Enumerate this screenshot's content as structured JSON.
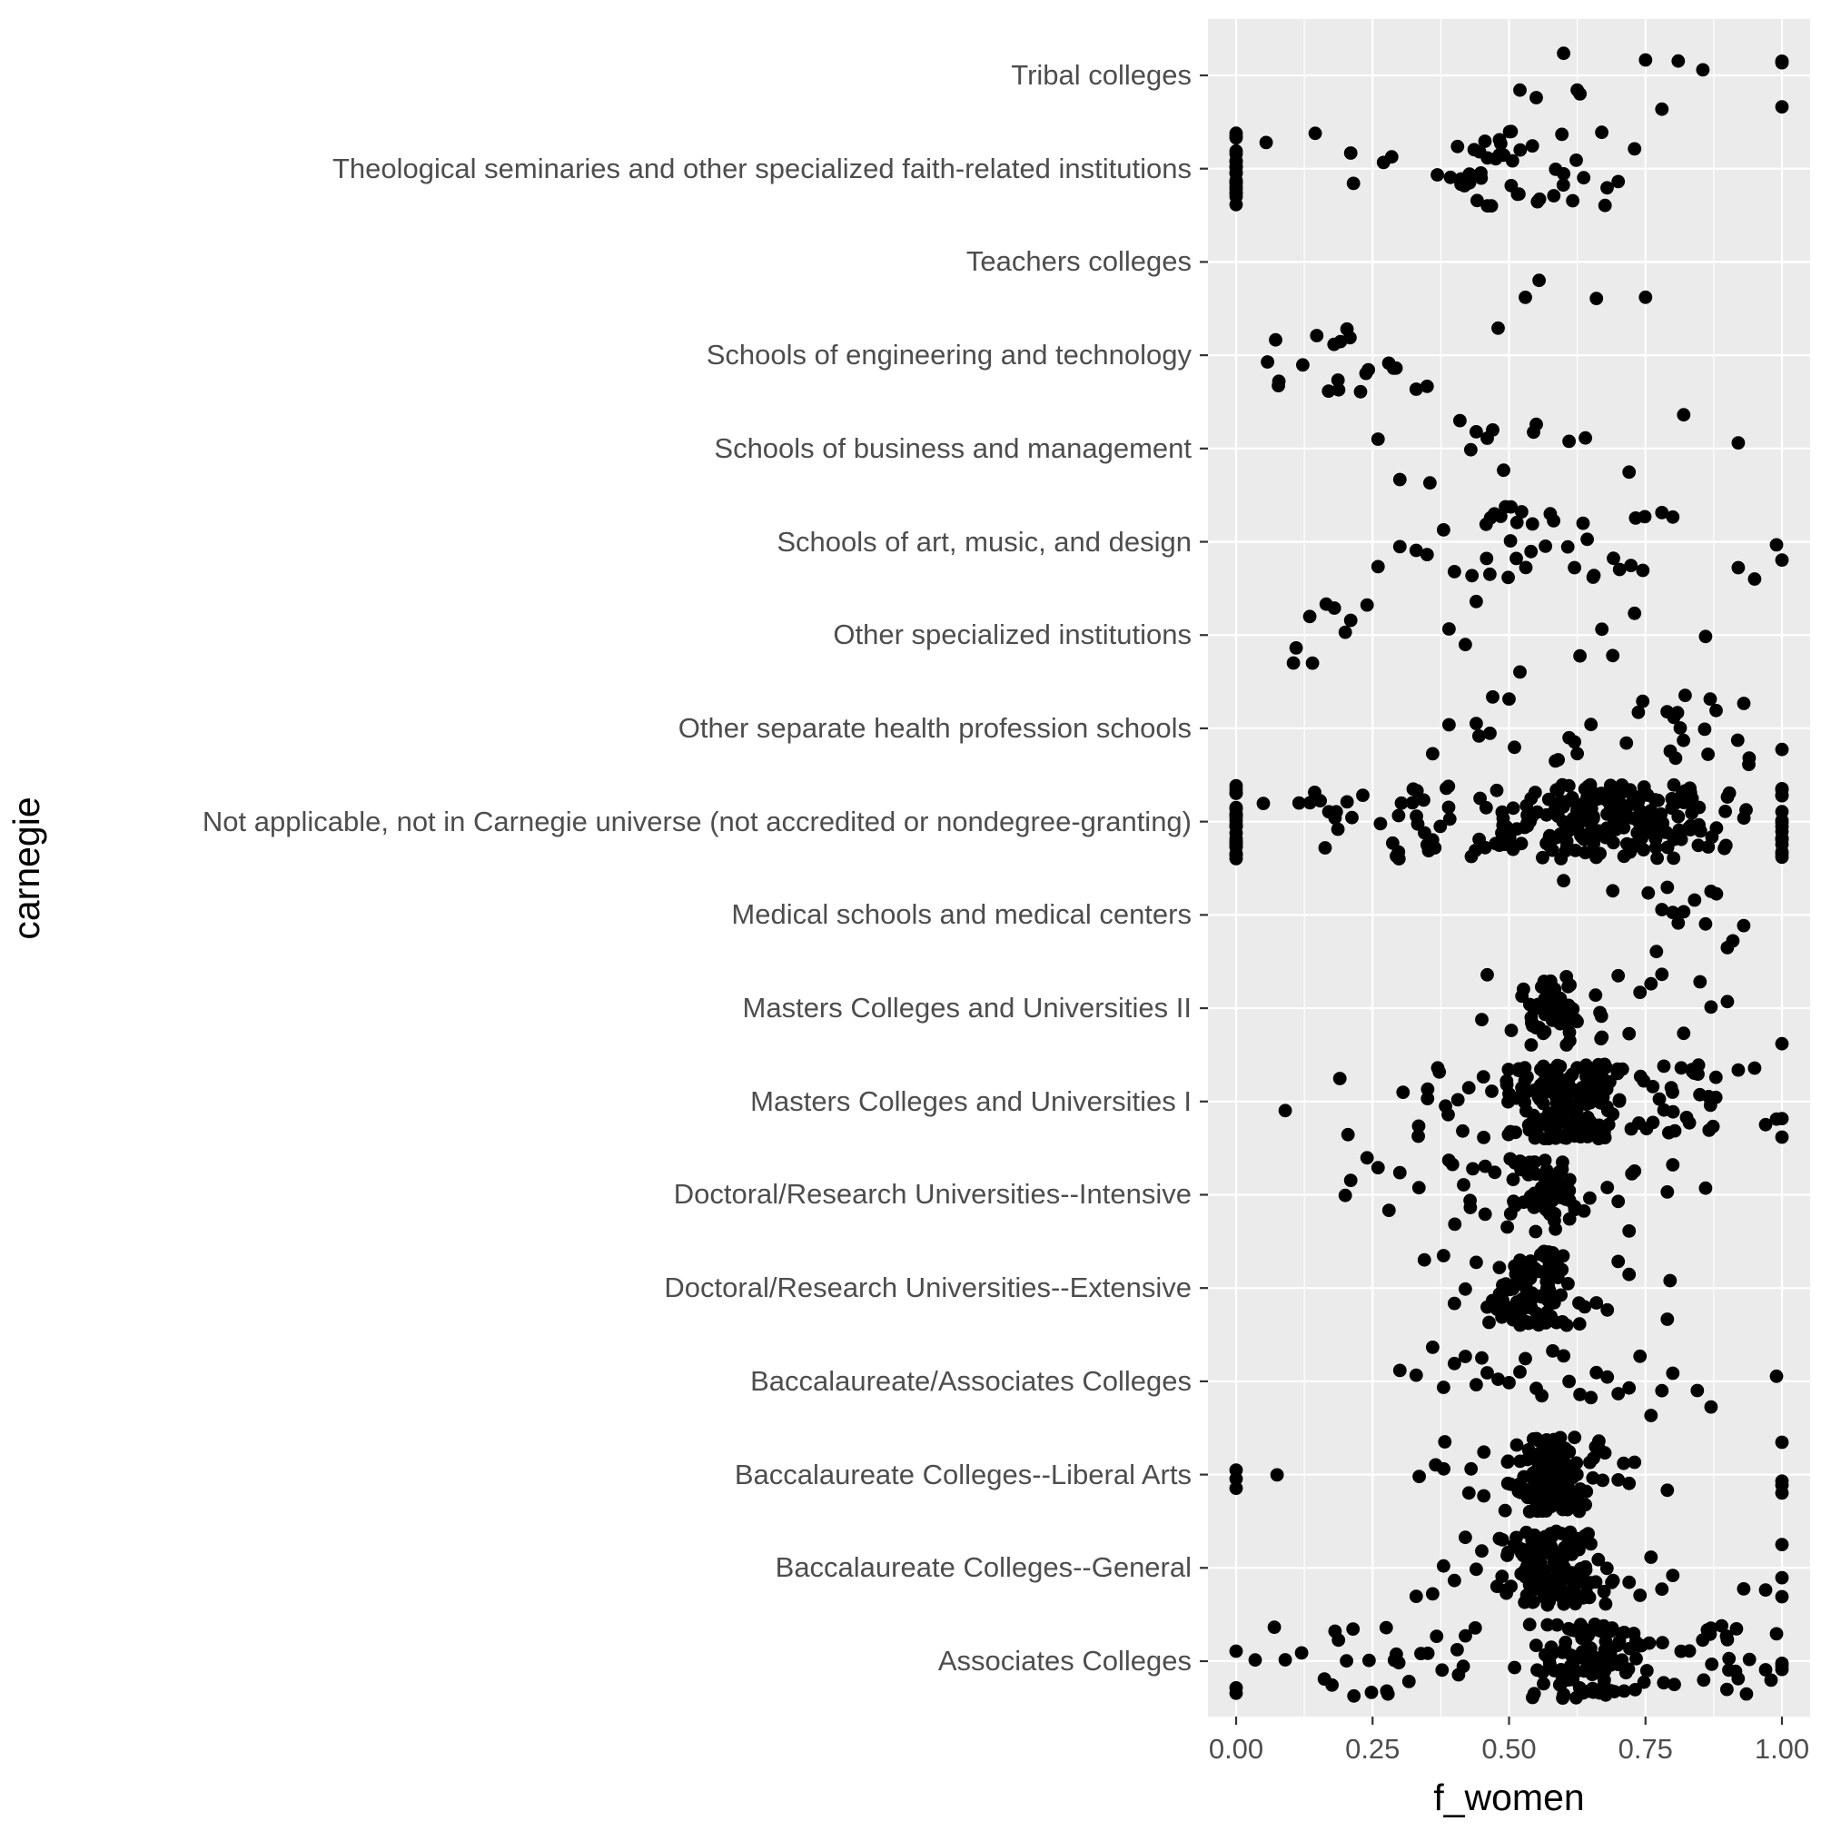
{
  "style": {
    "panel_bg": "#EBEBEB",
    "grid_color": "#FFFFFF",
    "point_color": "#000000",
    "axis_text_color": "#4D4D4D",
    "axis_title_color": "#000000",
    "tick_color": "#333333"
  },
  "chart_data": {
    "type": "scatter",
    "subtype": "jitter-strip-plot",
    "title": "",
    "xlabel": "f_women",
    "ylabel": "carnegie",
    "xlim": [
      -0.05,
      1.05
    ],
    "grid": "on",
    "legend": "none",
    "x_ticks": {
      "labels": [
        "0.00",
        "0.25",
        "0.50",
        "0.75",
        "1.00"
      ],
      "values": [
        0,
        0.25,
        0.5,
        0.75,
        1.0
      ]
    },
    "x_minor_gridlines": [
      0.125,
      0.375,
      0.625,
      0.875
    ],
    "categories_top_to_bottom": [
      "Tribal colleges",
      "Theological seminaries and other specialized faith-related institutions",
      "Teachers colleges",
      "Schools of engineering and technology",
      "Schools of business and management",
      "Schools of art, music, and design",
      "Other specialized institutions",
      "Other separate health profession schools",
      "Not applicable, not in Carnegie universe (not accredited or nondegree-granting)",
      "Medical schools and medical centers",
      "Masters Colleges and Universities II",
      "Masters Colleges and Universities I",
      "Doctoral/Research Universities--Intensive",
      "Doctoral/Research Universities--Extensive",
      "Baccalaureate/Associates Colleges",
      "Baccalaureate Colleges--Liberal Arts",
      "Baccalaureate Colleges--General",
      "Associates Colleges"
    ],
    "series": [
      {
        "label": "Tribal colleges",
        "zeros": 0,
        "ones": 3,
        "values": [
          0.52,
          0.55,
          0.6,
          0.625,
          0.63,
          0.75,
          0.78,
          0.81,
          0.855
        ],
        "clusters": []
      },
      {
        "label": "Theological seminaries and other specialized faith-related institutions",
        "zeros": 20,
        "ones": 0,
        "values": [
          0.055,
          0.145,
          0.21,
          0.215,
          0.27,
          0.285,
          0.7,
          0.73
        ],
        "clusters": [
          {
            "n": 30,
            "lo": 0.34,
            "hi": 0.56,
            "d": "tri"
          },
          {
            "n": 14,
            "lo": 0.5,
            "hi": 0.68,
            "d": "uni"
          }
        ]
      },
      {
        "label": "Teachers colleges",
        "zeros": 0,
        "ones": 0,
        "values": [
          0.53,
          0.555,
          0.66,
          0.75
        ],
        "clusters": []
      },
      {
        "label": "Schools of engineering and technology",
        "zeros": 0,
        "ones": 0,
        "values": [
          0.33,
          0.35,
          0.48
        ],
        "clusters": [
          {
            "n": 19,
            "lo": 0.03,
            "hi": 0.3,
            "d": "uni"
          }
        ]
      },
      {
        "label": "Schools of business and management",
        "zeros": 0,
        "ones": 0,
        "values": [
          0.26,
          0.3,
          0.355,
          0.41,
          0.43,
          0.44,
          0.46,
          0.47,
          0.49,
          0.545,
          0.55,
          0.61,
          0.64,
          0.72,
          0.82,
          0.92
        ],
        "clusters": []
      },
      {
        "label": "Schools of art, music, and design",
        "zeros": 0,
        "ones": 1,
        "values": [
          0.26,
          0.3,
          0.33,
          0.35,
          0.38,
          0.4,
          0.78,
          0.8,
          0.92,
          0.95,
          0.99
        ],
        "clusters": [
          {
            "n": 20,
            "lo": 0.42,
            "hi": 0.6,
            "d": "tri"
          },
          {
            "n": 12,
            "lo": 0.58,
            "hi": 0.75,
            "d": "uni"
          }
        ]
      },
      {
        "label": "Other specialized institutions",
        "zeros": 0,
        "ones": 0,
        "values": [
          0.105,
          0.11,
          0.135,
          0.14,
          0.165,
          0.18,
          0.2,
          0.21,
          0.24,
          0.39,
          0.42,
          0.44,
          0.52,
          0.63,
          0.67,
          0.69,
          0.73,
          0.86
        ],
        "clusters": []
      },
      {
        "label": "Other separate health profession schools",
        "zeros": 0,
        "ones": 1,
        "values": [
          0.36,
          0.39,
          0.44,
          0.445,
          0.465,
          0.47,
          0.5,
          0.51,
          0.585,
          0.59,
          0.61,
          0.62,
          0.625,
          0.65,
          0.715,
          0.737,
          0.745
        ],
        "clusters": [
          {
            "n": 16,
            "lo": 0.78,
            "hi": 0.95,
            "d": "uni"
          }
        ]
      },
      {
        "label": "Not applicable, not in Carnegie universe (not accredited or nondegree-granting)",
        "zeros": 25,
        "ones": 16,
        "values": [
          0.05
        ],
        "clusters": [
          {
            "n": 13,
            "lo": 0.11,
            "hi": 0.28,
            "d": "uni"
          },
          {
            "n": 22,
            "lo": 0.28,
            "hi": 0.4,
            "d": "uni"
          },
          {
            "n": 205,
            "lo": 0.4,
            "hi": 0.97,
            "d": "tri"
          }
        ]
      },
      {
        "label": "Medical schools and medical centers",
        "zeros": 0,
        "ones": 0,
        "values": [
          0.6,
          0.69,
          0.755,
          0.77,
          0.78,
          0.79,
          0.8,
          0.81,
          0.82,
          0.84,
          0.86,
          0.87,
          0.88,
          0.9,
          0.91,
          0.93
        ],
        "clusters": []
      },
      {
        "label": "Masters Colleges and Universities II",
        "zeros": 0,
        "ones": 1,
        "values": [
          0.45,
          0.46,
          0.7,
          0.72,
          0.74,
          0.76,
          0.78,
          0.82,
          0.85,
          0.87,
          0.9
        ],
        "clusters": [
          {
            "n": 52,
            "lo": 0.48,
            "hi": 0.68,
            "d": "tri"
          }
        ]
      },
      {
        "label": "Masters Colleges and Universities I",
        "zeros": 0,
        "ones": 2,
        "values": [
          0.09,
          0.19,
          0.205,
          0.92,
          0.95,
          0.97,
          0.99
        ],
        "clusters": [
          {
            "n": 15,
            "lo": 0.3,
            "hi": 0.47,
            "d": "uni"
          },
          {
            "n": 180,
            "lo": 0.47,
            "hi": 0.72,
            "d": "tri"
          },
          {
            "n": 30,
            "lo": 0.72,
            "hi": 0.88,
            "d": "uni"
          }
        ]
      },
      {
        "label": "Doctoral/Research Universities--Intensive",
        "zeros": 0,
        "ones": 0,
        "values": [
          0.2,
          0.21,
          0.24,
          0.26,
          0.28,
          0.3,
          0.335,
          0.68,
          0.7,
          0.72,
          0.725,
          0.73,
          0.79,
          0.8,
          0.86
        ],
        "clusters": [
          {
            "n": 10,
            "lo": 0.38,
            "hi": 0.48,
            "d": "uni"
          },
          {
            "n": 58,
            "lo": 0.48,
            "hi": 0.66,
            "d": "tri"
          }
        ]
      },
      {
        "label": "Doctoral/Research Universities--Extensive",
        "zeros": 0,
        "ones": 0,
        "values": [
          0.345,
          0.38,
          0.4,
          0.42,
          0.44,
          0.46,
          0.66,
          0.68,
          0.7,
          0.72,
          0.79,
          0.795
        ],
        "clusters": [
          {
            "n": 95,
            "lo": 0.46,
            "hi": 0.64,
            "d": "tri"
          }
        ]
      },
      {
        "label": "Baccalaureate/Associates Colleges",
        "zeros": 0,
        "ones": 0,
        "values": [
          0.3,
          0.33,
          0.36,
          0.38,
          0.4,
          0.42,
          0.44,
          0.45,
          0.46,
          0.48,
          0.5,
          0.52,
          0.53,
          0.55,
          0.56,
          0.58,
          0.6,
          0.61,
          0.63,
          0.65,
          0.66,
          0.68,
          0.7,
          0.72,
          0.74,
          0.76,
          0.78,
          0.8,
          0.845,
          0.87,
          0.99
        ],
        "clusters": []
      },
      {
        "label": "Baccalaureate Colleges--Liberal Arts",
        "zeros": 3,
        "ones": 4,
        "values": [
          0.075,
          0.7,
          0.71,
          0.72,
          0.73,
          0.79
        ],
        "clusters": [
          {
            "n": 8,
            "lo": 0.33,
            "hi": 0.46,
            "d": "uni"
          },
          {
            "n": 128,
            "lo": 0.48,
            "hi": 0.68,
            "d": "tri"
          }
        ]
      },
      {
        "label": "Baccalaureate Colleges--General",
        "zeros": 0,
        "ones": 3,
        "values": [
          0.33,
          0.36,
          0.38,
          0.4,
          0.42,
          0.44,
          0.45,
          0.72,
          0.74,
          0.76,
          0.78,
          0.8,
          0.93,
          0.97
        ],
        "clusters": [
          {
            "n": 150,
            "lo": 0.47,
            "hi": 0.7,
            "d": "tri"
          }
        ]
      },
      {
        "label": "Associates Colleges",
        "zeros": 3,
        "ones": 3,
        "values": [
          0.035,
          0.07,
          0.09,
          0.12,
          0.97,
          0.98,
          0.99
        ],
        "clusters": [
          {
            "n": 25,
            "lo": 0.15,
            "hi": 0.45,
            "d": "uni"
          },
          {
            "n": 110,
            "lo": 0.5,
            "hi": 0.8,
            "d": "tri"
          },
          {
            "n": 20,
            "lo": 0.8,
            "hi": 0.95,
            "d": "uni"
          }
        ]
      }
    ]
  }
}
